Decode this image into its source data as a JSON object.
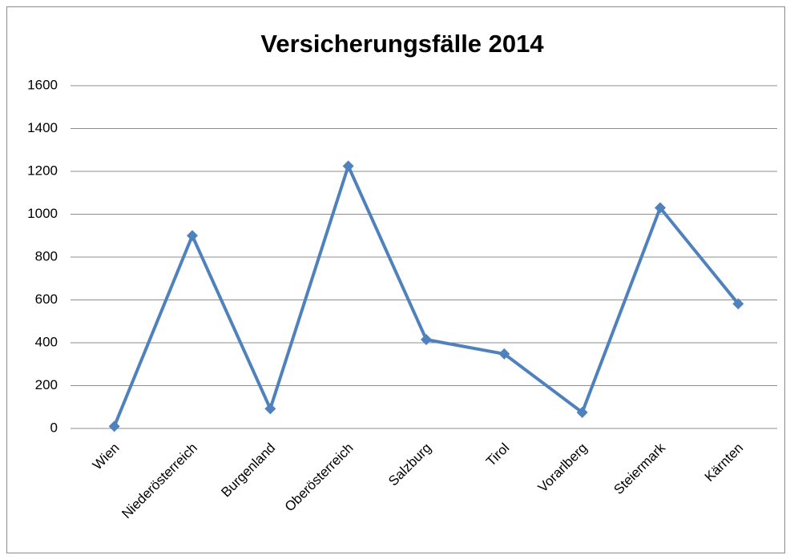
{
  "chart_data": {
    "type": "line",
    "title": "Versicherungsfälle 2014",
    "categories": [
      "Wien",
      "Niederösterreich",
      "Burgenland",
      "Oberösterreich",
      "Salzburg",
      "Tirol",
      "Vorarlberg",
      "Steiermark",
      "Kärnten"
    ],
    "values": [
      10,
      900,
      92,
      1225,
      415,
      348,
      75,
      1030,
      582
    ],
    "color": "#4f81bd",
    "ylim": [
      0,
      1600
    ],
    "yticks": [
      0,
      200,
      400,
      600,
      800,
      1000,
      1200,
      1400,
      1600
    ],
    "grid": true
  }
}
